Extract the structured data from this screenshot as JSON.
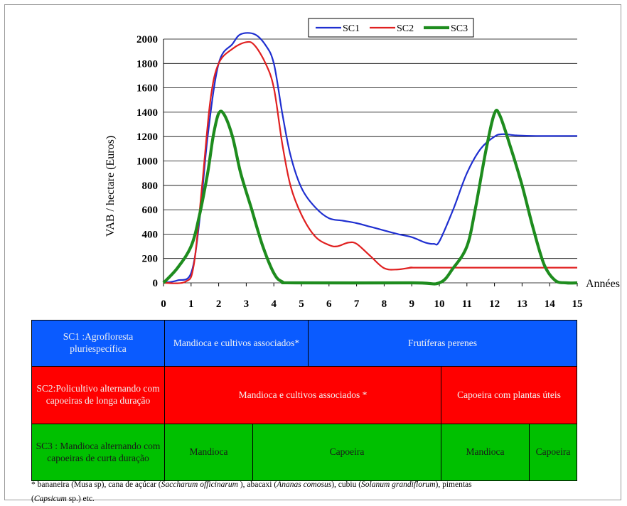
{
  "chart_data": {
    "type": "line",
    "title": "",
    "xlabel": "Années",
    "ylabel": "VAB / hectare (Euros)",
    "xlim": [
      0,
      15
    ],
    "ylim": [
      0,
      2000
    ],
    "xticks": [
      "0",
      "1",
      "2",
      "3",
      "4",
      "5",
      "6",
      "7",
      "8",
      "9",
      "10",
      "11",
      "12",
      "13",
      "14",
      "15"
    ],
    "yticks": [
      "0",
      "200",
      "400",
      "600",
      "800",
      "1000",
      "1200",
      "1400",
      "1600",
      "1800",
      "2000"
    ],
    "grid": "horizontal",
    "legend_position": "top-center",
    "series": [
      {
        "name": "SC1",
        "color": "#1f2fd0",
        "points": [
          [
            0,
            0
          ],
          [
            0.5,
            20
          ],
          [
            1,
            80
          ],
          [
            1.3,
            500
          ],
          [
            1.6,
            1200
          ],
          [
            2,
            1800
          ],
          [
            2.5,
            1960
          ],
          [
            2.8,
            2040
          ],
          [
            3.3,
            2040
          ],
          [
            3.7,
            1950
          ],
          [
            4,
            1800
          ],
          [
            4.3,
            1400
          ],
          [
            4.6,
            1050
          ],
          [
            5,
            780
          ],
          [
            5.5,
            620
          ],
          [
            6,
            530
          ],
          [
            6.5,
            510
          ],
          [
            7,
            490
          ],
          [
            7.5,
            460
          ],
          [
            8,
            430
          ],
          [
            8.5,
            400
          ],
          [
            9,
            375
          ],
          [
            9.5,
            330
          ],
          [
            9.8,
            320
          ],
          [
            10,
            340
          ],
          [
            10.5,
            600
          ],
          [
            11,
            900
          ],
          [
            11.5,
            1100
          ],
          [
            12,
            1200
          ],
          [
            12.3,
            1220
          ],
          [
            12.8,
            1210
          ],
          [
            13.5,
            1205
          ],
          [
            15,
            1205
          ]
        ]
      },
      {
        "name": "SC2",
        "color": "#e02020",
        "points": [
          [
            0,
            0
          ],
          [
            0.8,
            10
          ],
          [
            1.1,
            150
          ],
          [
            1.4,
            800
          ],
          [
            1.7,
            1500
          ],
          [
            2,
            1800
          ],
          [
            2.5,
            1920
          ],
          [
            3,
            1975
          ],
          [
            3.3,
            1950
          ],
          [
            3.7,
            1800
          ],
          [
            4,
            1600
          ],
          [
            4.3,
            1150
          ],
          [
            4.6,
            800
          ],
          [
            5,
            560
          ],
          [
            5.5,
            380
          ],
          [
            6,
            310
          ],
          [
            6.3,
            300
          ],
          [
            6.7,
            330
          ],
          [
            7,
            320
          ],
          [
            7.5,
            220
          ],
          [
            8,
            120
          ],
          [
            8.5,
            110
          ],
          [
            9,
            125
          ],
          [
            9.5,
            125
          ],
          [
            15,
            125
          ]
        ]
      },
      {
        "name": "SC3",
        "color": "#1e8c1e",
        "points": [
          [
            0,
            0
          ],
          [
            0.5,
            120
          ],
          [
            1,
            300
          ],
          [
            1.3,
            550
          ],
          [
            1.6,
            900
          ],
          [
            1.8,
            1200
          ],
          [
            2,
            1390
          ],
          [
            2.2,
            1380
          ],
          [
            2.5,
            1200
          ],
          [
            2.8,
            900
          ],
          [
            3.2,
            600
          ],
          [
            3.6,
            300
          ],
          [
            4,
            80
          ],
          [
            4.3,
            10
          ],
          [
            4.8,
            0
          ],
          [
            9,
            0
          ],
          [
            10,
            0
          ],
          [
            10.5,
            120
          ],
          [
            11,
            300
          ],
          [
            11.3,
            600
          ],
          [
            11.7,
            1100
          ],
          [
            12,
            1390
          ],
          [
            12.2,
            1370
          ],
          [
            12.6,
            1100
          ],
          [
            13,
            800
          ],
          [
            13.4,
            450
          ],
          [
            13.8,
            150
          ],
          [
            14.2,
            20
          ],
          [
            14.6,
            0
          ],
          [
            15,
            0
          ]
        ]
      }
    ]
  },
  "lanes": {
    "sc1": {
      "label": "SC1 :Agrofloresta pluriespecífica",
      "segments": [
        "Mandioca e cultivos associados*",
        "Frutíferas perenes"
      ]
    },
    "sc2": {
      "label": "SC2:Policultivo alternando com capoeiras de longa duração",
      "segments": [
        "Mandioca e cultivos associados *",
        "Capoeira com plantas úteis"
      ]
    },
    "sc3": {
      "label": "SC3 : Mandioca alternando com capoeiras de curta duração",
      "segments": [
        "Mandioca",
        "Capoeira",
        "Mandioca",
        "Capoeira"
      ]
    }
  },
  "footnote": {
    "p1": "* bananeira (Musa sp), cana de açúcar (",
    "i1": "Saccharum officinarum",
    "p2": " ), abacaxi (",
    "i2": "Ananas comosus",
    "p3": "), cubiu (",
    "i3": "Solanum grandiflorum",
    "p4": "), pimentas",
    "p5": "(",
    "i4": "Capsicum",
    "p6": " sp.) etc."
  },
  "colors": {
    "lane_blue": "#0a5bff",
    "lane_red": "#ff0000",
    "lane_green": "#00c000",
    "grid": "#000000"
  }
}
